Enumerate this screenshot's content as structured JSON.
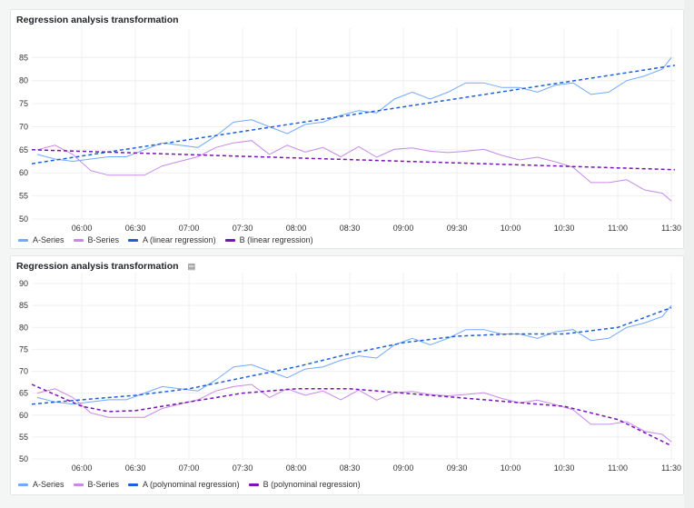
{
  "colors": {
    "a_series": "#73a9ff",
    "b_series": "#c88ae6",
    "a_regression": "#1f60d8",
    "b_regression": "#7a12b8",
    "grid": "#efefef"
  },
  "panels": [
    {
      "title": "Regression analysis transformation",
      "icon": null,
      "legend": [
        {
          "label": "A-Series",
          "color": "#73a9ff"
        },
        {
          "label": "B-Series",
          "color": "#c88ae6"
        },
        {
          "label": "A (linear regression)",
          "color": "#1f60d8"
        },
        {
          "label": "B (linear regression)",
          "color": "#7a12b8"
        }
      ]
    },
    {
      "title": "Regression analysis transformation",
      "icon": "library-panel-icon",
      "legend": [
        {
          "label": "A-Series",
          "color": "#73a9ff"
        },
        {
          "label": "B-Series",
          "color": "#c88ae6"
        },
        {
          "label": "A (polynominal regression)",
          "color": "#1f60d8"
        },
        {
          "label": "B (polynominal regression)",
          "color": "#7a12b8"
        }
      ]
    }
  ],
  "chart_data": [
    {
      "type": "line",
      "title": "Regression analysis transformation",
      "xlim": [
        "05:32",
        "11:32"
      ],
      "ylim": [
        50,
        89
      ],
      "xticks": [
        "06:00",
        "06:30",
        "07:00",
        "07:30",
        "08:00",
        "08:30",
        "09:00",
        "09:30",
        "10:00",
        "10:30",
        "11:00",
        "11:30"
      ],
      "yticks": [
        50,
        55,
        60,
        65,
        70,
        75,
        80,
        85
      ],
      "grid": true,
      "legend": "bottom-left",
      "x": [
        "05:35",
        "05:45",
        "05:55",
        "06:05",
        "06:15",
        "06:25",
        "06:35",
        "06:45",
        "06:55",
        "07:05",
        "07:15",
        "07:25",
        "07:35",
        "07:45",
        "07:55",
        "08:05",
        "08:15",
        "08:25",
        "08:35",
        "08:45",
        "08:55",
        "09:05",
        "09:15",
        "09:25",
        "09:35",
        "09:45",
        "09:55",
        "10:05",
        "10:15",
        "10:25",
        "10:35",
        "10:45",
        "10:55",
        "11:05",
        "11:15",
        "11:25",
        "11:30"
      ],
      "series": [
        {
          "name": "A-Series",
          "style": "solid",
          "values": [
            64,
            63,
            62.5,
            63,
            63.5,
            63.5,
            65,
            66.5,
            66,
            65.5,
            68,
            71,
            71.5,
            70,
            68.5,
            70.5,
            71,
            72.5,
            73.5,
            73,
            76,
            77.5,
            76,
            77.5,
            79.5,
            79.5,
            78.5,
            78.5,
            77.5,
            79,
            79.5,
            77,
            77.5,
            80,
            81,
            82.5,
            85
          ]
        },
        {
          "name": "B-Series",
          "style": "solid",
          "values": [
            65,
            66,
            64,
            60.5,
            59.5,
            59.5,
            59.5,
            61.5,
            62.5,
            63.5,
            65.5,
            66.5,
            67,
            64,
            66,
            64.5,
            65.5,
            63.5,
            65.7,
            63.4,
            65.1,
            65.4,
            64.7,
            64.4,
            64.7,
            65.1,
            63.8,
            62.8,
            63.4,
            62.4,
            61.2,
            57.9,
            57.9,
            58.5,
            56.3,
            55.6,
            53.9
          ]
        },
        {
          "name": "A (linear regression)",
          "style": "dashed",
          "x": [
            "05:32",
            "11:32"
          ],
          "values": [
            62,
            83.3
          ]
        },
        {
          "name": "B (linear regression)",
          "style": "dashed",
          "x": [
            "05:32",
            "11:32"
          ],
          "values": [
            65,
            60.7
          ]
        }
      ]
    },
    {
      "type": "line",
      "title": "Regression analysis transformation",
      "xlim": [
        "05:32",
        "11:32"
      ],
      "ylim": [
        50,
        90
      ],
      "xticks": [
        "06:00",
        "06:30",
        "07:00",
        "07:30",
        "08:00",
        "08:30",
        "09:00",
        "09:30",
        "10:00",
        "10:30",
        "11:00",
        "11:30"
      ],
      "yticks": [
        50,
        55,
        60,
        65,
        70,
        75,
        80,
        85,
        90
      ],
      "grid": true,
      "legend": "bottom-left",
      "x": [
        "05:35",
        "05:45",
        "05:55",
        "06:05",
        "06:15",
        "06:25",
        "06:35",
        "06:45",
        "06:55",
        "07:05",
        "07:15",
        "07:25",
        "07:35",
        "07:45",
        "07:55",
        "08:05",
        "08:15",
        "08:25",
        "08:35",
        "08:45",
        "08:55",
        "09:05",
        "09:15",
        "09:25",
        "09:35",
        "09:45",
        "09:55",
        "10:05",
        "10:15",
        "10:25",
        "10:35",
        "10:45",
        "10:55",
        "11:05",
        "11:15",
        "11:25",
        "11:30"
      ],
      "series": [
        {
          "name": "A-Series",
          "style": "solid",
          "values": [
            64,
            63,
            62.5,
            63,
            63.5,
            63.5,
            65,
            66.5,
            66,
            65.5,
            68,
            71,
            71.5,
            70,
            68.5,
            70.5,
            71,
            72.5,
            73.5,
            73,
            76,
            77.5,
            76,
            77.5,
            79.5,
            79.5,
            78.5,
            78.5,
            77.5,
            79,
            79.5,
            77,
            77.5,
            80,
            81,
            82.5,
            85
          ]
        },
        {
          "name": "B-Series",
          "style": "solid",
          "values": [
            65,
            66,
            64,
            60.5,
            59.5,
            59.5,
            59.5,
            61.5,
            62.5,
            63.5,
            65.5,
            66.5,
            67,
            64,
            66,
            64.5,
            65.5,
            63.5,
            65.7,
            63.4,
            65.1,
            65.4,
            64.7,
            64.4,
            64.7,
            65.1,
            63.8,
            62.8,
            63.4,
            62.4,
            61.2,
            57.9,
            57.9,
            58.5,
            56.3,
            55.6,
            53.9
          ]
        },
        {
          "name": "A (polynominal regression)",
          "style": "dashed",
          "x": [
            "05:32",
            "06:00",
            "06:30",
            "07:00",
            "07:30",
            "08:00",
            "08:30",
            "09:00",
            "09:30",
            "10:00",
            "10:30",
            "11:00",
            "11:30"
          ],
          "values": [
            62.5,
            63.5,
            64.5,
            66,
            68.5,
            71,
            74,
            76.5,
            78,
            78.5,
            78.5,
            80,
            84.5
          ]
        },
        {
          "name": "B (polynominal regression)",
          "style": "dashed",
          "x": [
            "05:32",
            "06:00",
            "06:15",
            "06:30",
            "07:00",
            "07:30",
            "08:00",
            "08:30",
            "09:00",
            "09:30",
            "10:00",
            "10:30",
            "11:00",
            "11:30"
          ],
          "values": [
            67,
            62,
            60.8,
            61,
            63,
            65,
            66,
            66,
            65,
            64,
            63,
            62,
            59,
            53
          ]
        }
      ]
    }
  ]
}
